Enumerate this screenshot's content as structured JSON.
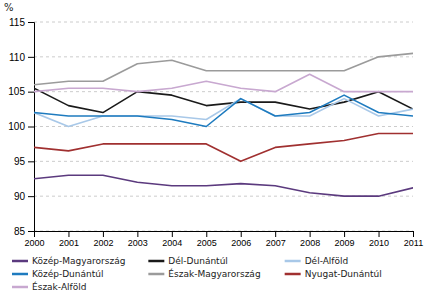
{
  "chart_data": {
    "type": "line",
    "y_label": "%",
    "x": [
      2000,
      2001,
      2002,
      2003,
      2004,
      2005,
      2006,
      2007,
      2008,
      2009,
      2010,
      2011
    ],
    "xlim": [
      2000,
      2011
    ],
    "xticks": [
      2000,
      2001,
      2002,
      2003,
      2004,
      2005,
      2006,
      2007,
      2008,
      2009,
      2010,
      2011
    ],
    "ylim": [
      85,
      115
    ],
    "yticks": [
      85,
      90,
      95,
      100,
      105,
      110,
      115
    ],
    "grid": true,
    "legend": "bottom",
    "series": [
      {
        "name": "Közép-Magyarország",
        "color": "#5b3a7e",
        "values": [
          92.5,
          93.0,
          93.0,
          92.0,
          91.5,
          91.5,
          91.8,
          91.5,
          90.5,
          90.0,
          90.0,
          91.2
        ]
      },
      {
        "name": "Dél-Dunántúl",
        "color": "#1a1a1a",
        "values": [
          105.5,
          103.0,
          102.0,
          105.0,
          104.5,
          103.0,
          103.5,
          103.5,
          102.5,
          103.5,
          105.0,
          102.5
        ]
      },
      {
        "name": "Dél-Alföld",
        "color": "#a8c8e8",
        "values": [
          102.0,
          100.0,
          101.5,
          101.5,
          101.5,
          101.0,
          104.0,
          101.5,
          101.5,
          104.0,
          101.5,
          102.5
        ]
      },
      {
        "name": "Közép-Dunántúl",
        "color": "#1e7bbf",
        "values": [
          102.0,
          101.5,
          101.5,
          101.5,
          101.0,
          100.0,
          104.0,
          101.5,
          102.0,
          104.5,
          102.0,
          101.5
        ]
      },
      {
        "name": "Észak-Magyarország",
        "color": "#9b9b9b",
        "values": [
          106.0,
          106.5,
          106.5,
          109.0,
          109.5,
          108.0,
          108.0,
          108.0,
          108.0,
          108.0,
          110.0,
          110.5
        ]
      },
      {
        "name": "Nyugat-Dunántúl",
        "color": "#a03030",
        "values": [
          97.0,
          96.5,
          97.5,
          97.5,
          97.5,
          97.5,
          95.0,
          97.0,
          97.5,
          98.0,
          99.0,
          99.0
        ]
      },
      {
        "name": "Észak-Alföld",
        "color": "#c8a8d0",
        "values": [
          105.0,
          105.5,
          105.5,
          105.0,
          105.5,
          106.5,
          105.5,
          105.0,
          107.5,
          105.0,
          105.0,
          105.0
        ]
      }
    ]
  }
}
